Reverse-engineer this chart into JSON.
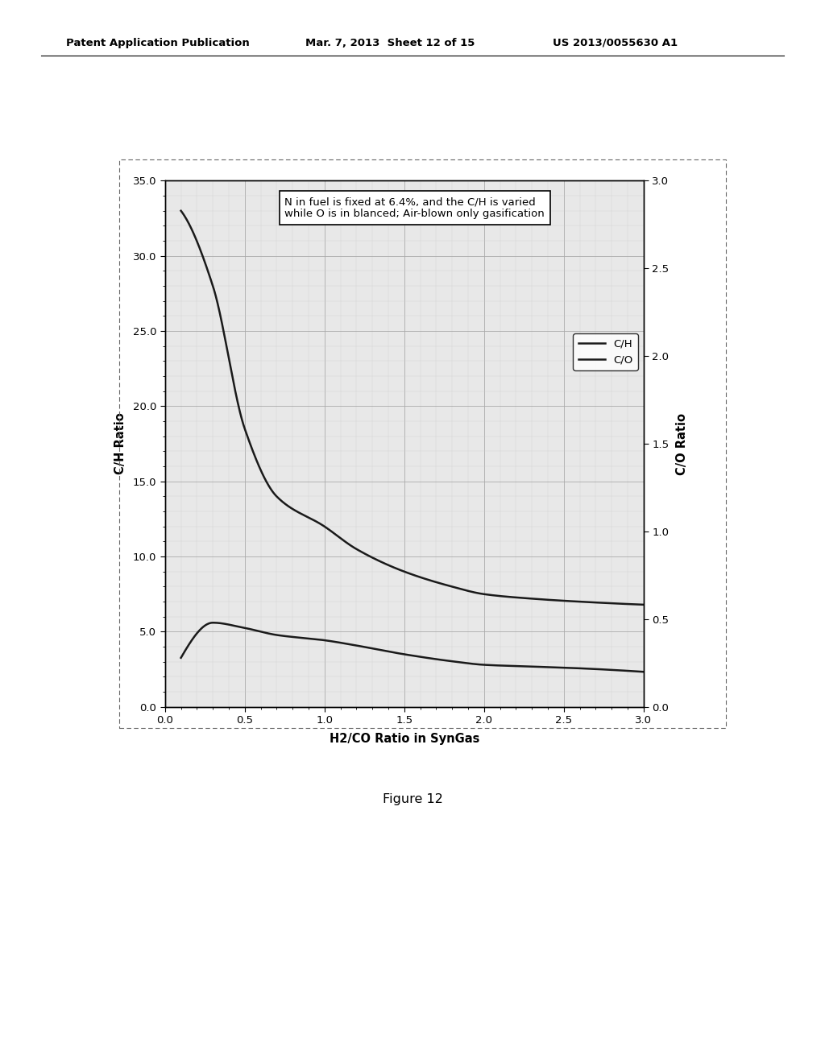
{
  "xlabel": "H2/CO Ratio in SynGas",
  "ylabel_left": "C/H Ratio",
  "ylabel_right": "C/O Ratio",
  "xlim": [
    0.0,
    3.0
  ],
  "ylim_left": [
    0.0,
    35.0
  ],
  "ylim_right": [
    0.0,
    3.0
  ],
  "xticks": [
    0.0,
    0.5,
    1.0,
    1.5,
    2.0,
    2.5,
    3.0
  ],
  "yticks_left": [
    0.0,
    5.0,
    10.0,
    15.0,
    20.0,
    25.0,
    30.0,
    35.0
  ],
  "yticks_right": [
    0.0,
    0.5,
    1.0,
    1.5,
    2.0,
    2.5,
    3.0
  ],
  "annotation": "N in fuel is fixed at 6.4%, and the C/H is varied\nwhile O is in blanced; Air-blown only gasification",
  "legend_labels": [
    "C/H",
    "C/O"
  ],
  "line_color": "#1a1a1a",
  "background_color": "#ffffff",
  "header_left": "Patent Application Publication",
  "header_center": "Mar. 7, 2013  Sheet 12 of 15",
  "header_right": "US 2013/0055630 A1",
  "figure_caption": "Figure 12",
  "grid_color": "#aaaaaa",
  "minor_grid_color": "#cccccc",
  "plot_bg": "#e8e8e8",
  "ch_points_x": [
    0.1,
    0.3,
    0.5,
    0.7,
    1.0,
    1.2,
    1.5,
    1.8,
    2.0,
    2.3,
    2.6,
    3.0
  ],
  "ch_points_y": [
    33.0,
    28.0,
    18.5,
    14.0,
    12.0,
    10.5,
    9.0,
    8.0,
    7.5,
    7.2,
    7.0,
    6.8
  ],
  "co_points_x": [
    0.1,
    0.3,
    0.5,
    0.7,
    1.0,
    1.2,
    1.5,
    1.8,
    2.0,
    2.3,
    2.6,
    3.0
  ],
  "co_points_y": [
    0.28,
    0.48,
    0.45,
    0.41,
    0.38,
    0.35,
    0.3,
    0.26,
    0.24,
    0.23,
    0.22,
    0.2
  ]
}
